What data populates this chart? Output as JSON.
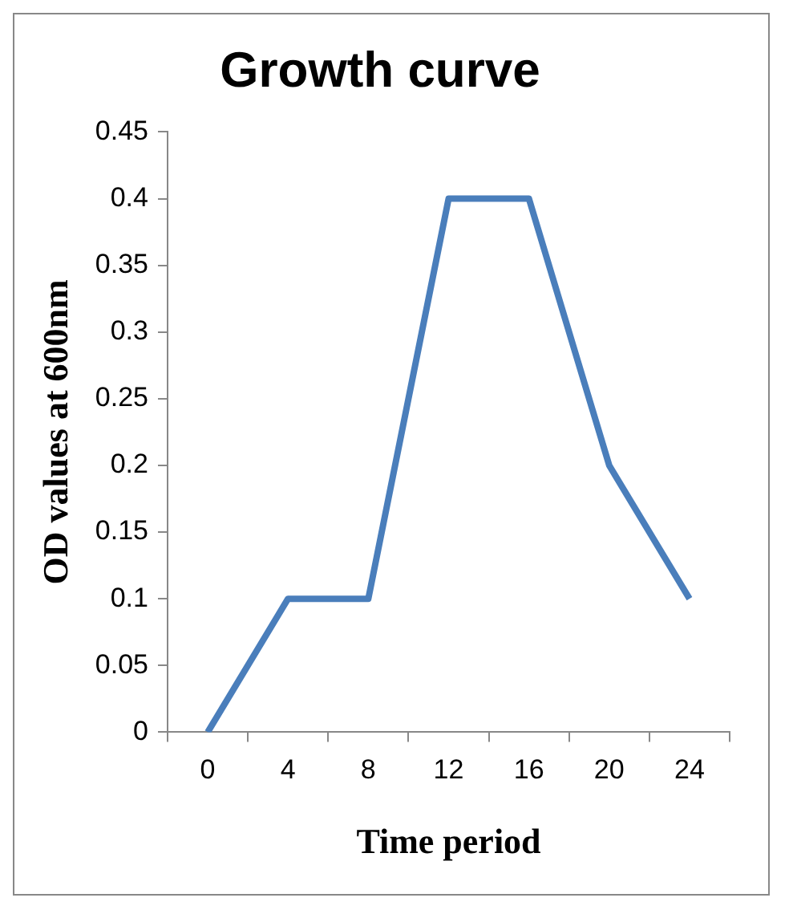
{
  "chart_data": {
    "type": "line",
    "title": "Growth curve",
    "xlabel": "Time period",
    "ylabel": "OD values at 600nm",
    "categories": [
      "0",
      "4",
      "8",
      "12",
      "16",
      "20",
      "24"
    ],
    "series": [
      {
        "color": "#4a7ebb",
        "values": [
          0,
          0.1,
          0.1,
          0.4,
          0.4,
          0.2,
          0.1
        ]
      }
    ],
    "ylim": [
      0,
      0.45
    ],
    "yticks": [
      0,
      0.05,
      0.1,
      0.15,
      0.2,
      0.25,
      0.3,
      0.35,
      0.4,
      0.45
    ],
    "grid": false,
    "legend": false,
    "marker": "none"
  }
}
